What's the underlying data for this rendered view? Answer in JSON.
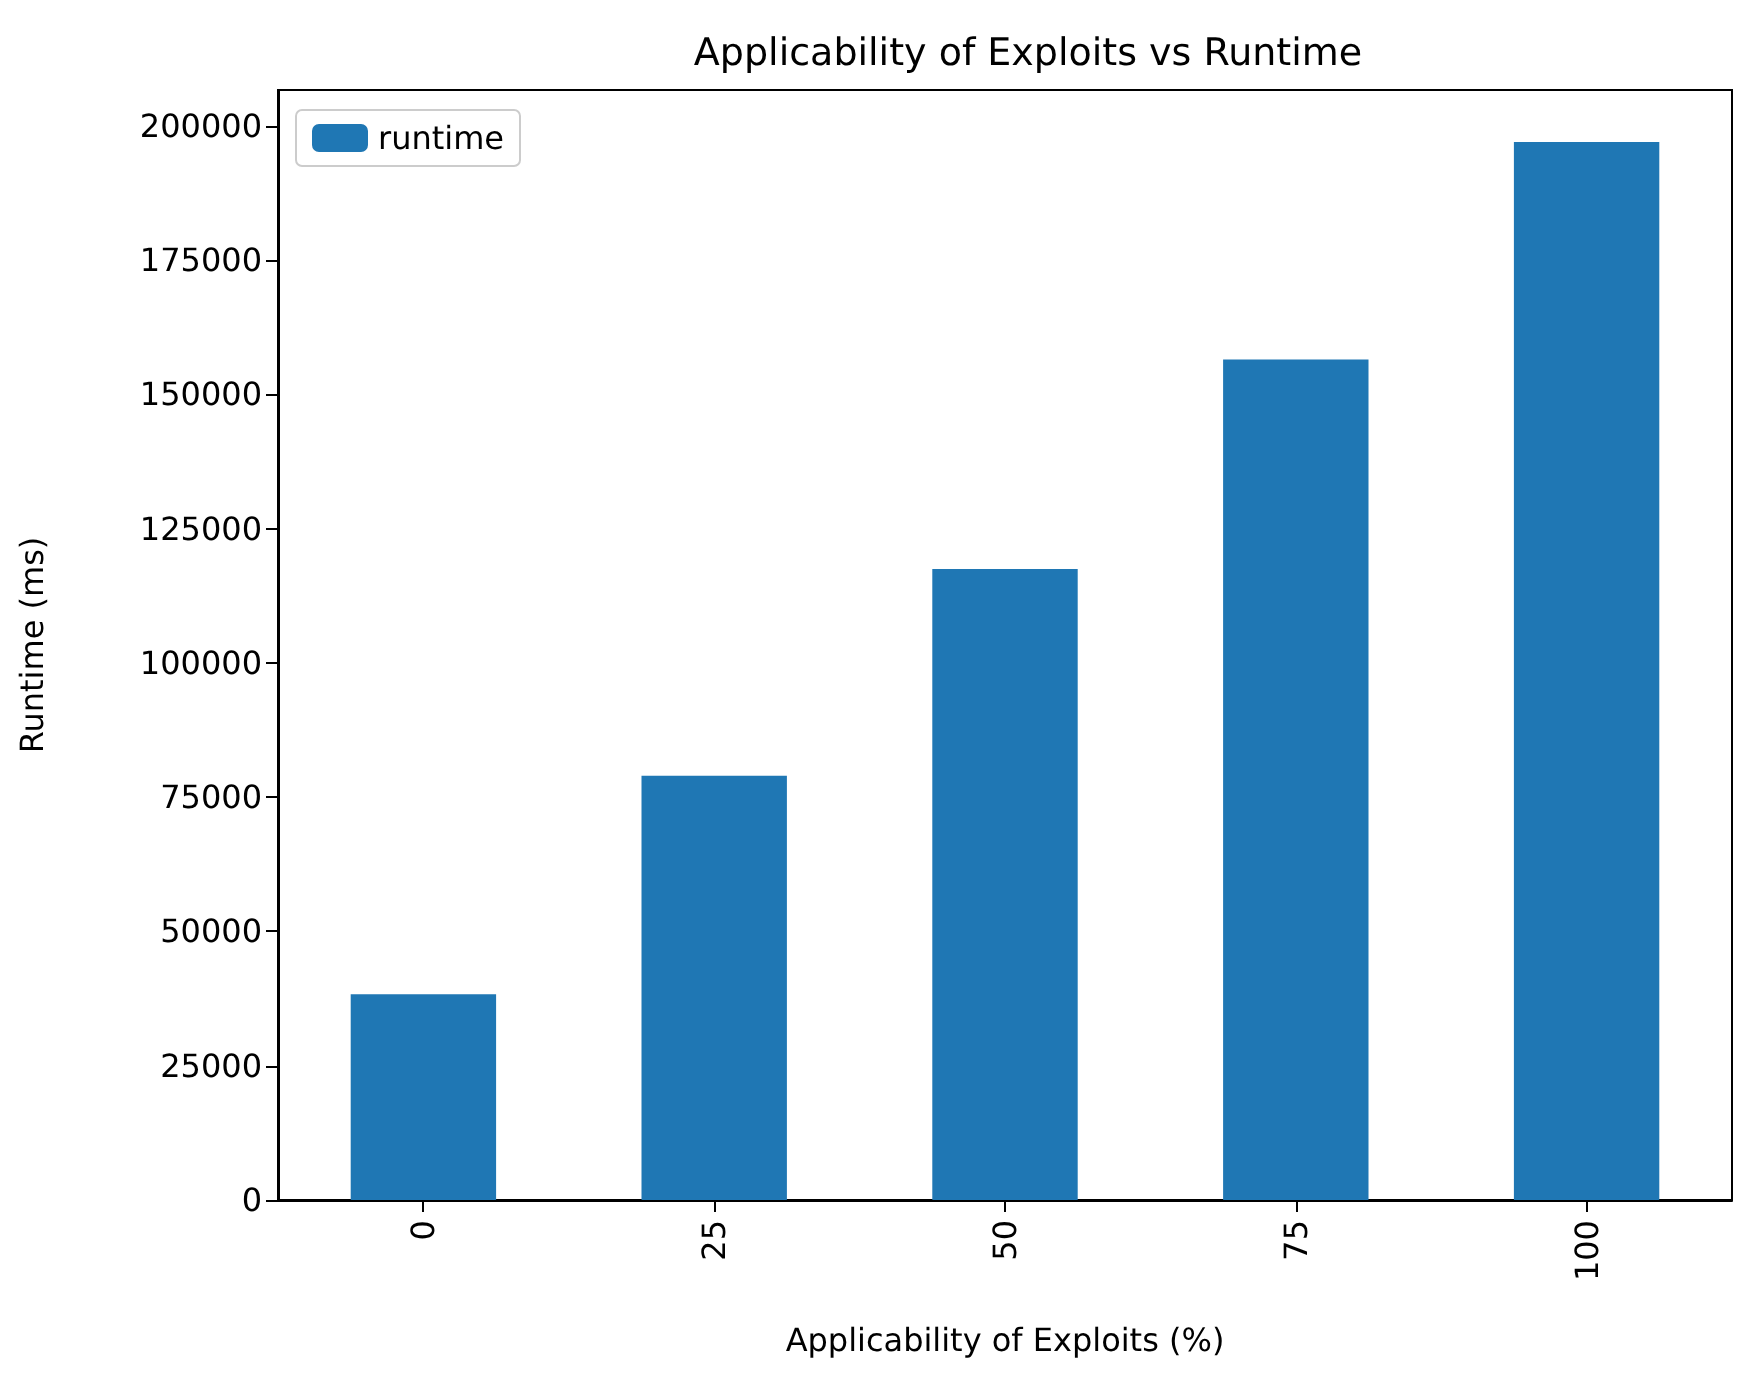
{
  "chart_data": {
    "type": "bar",
    "title": "Applicability of Exploits vs Runtime",
    "xlabel": "Applicability of Exploits (%)",
    "ylabel": "Runtime (ms)",
    "categories": [
      "0",
      "25",
      "50",
      "75",
      "100"
    ],
    "series": [
      {
        "name": "runtime",
        "color": "#1f77b4",
        "values": [
          38300,
          79000,
          117500,
          156500,
          197000
        ]
      }
    ],
    "ylim": [
      0,
      206700
    ],
    "yticks": [
      0,
      25000,
      50000,
      75000,
      100000,
      125000,
      150000,
      175000,
      200000
    ],
    "grid": false,
    "legend": "top left"
  }
}
